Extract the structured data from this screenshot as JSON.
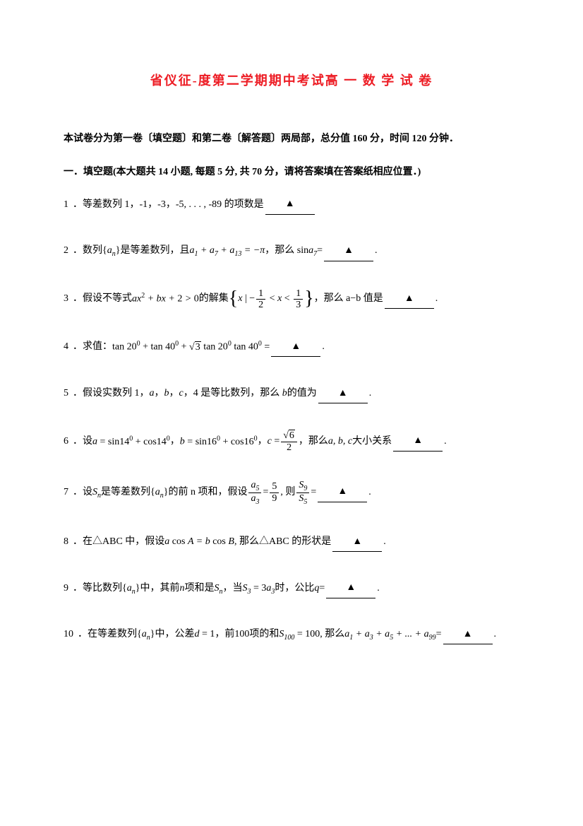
{
  "title": "省仪征-度第二学期期中考试高 一 数 学 试 卷",
  "intro": "本试卷分为第一卷〔填空题〕和第二卷〔解答题〕两局部，总分值 160 分，时间 120 分钟．",
  "section1_heading": "一．填空题(本大题共 14 小题, 每题 5 分, 共 70 分，请将答案填在答案纸相应位置．)",
  "blank_symbol": "▲",
  "questions": {
    "q1": {
      "num": "1",
      "text_a": "．等差数列 1，-1，-3，-5, . . . , -89 的项数是"
    },
    "q2": {
      "num": "2",
      "text_a": "．数列",
      "seq": "{aₙ}",
      "text_b": "是等差数列，且",
      "expr1_a": "a",
      "expr1_sub1": "1",
      "expr1_plus": " + ",
      "expr1_sub2": "7",
      "expr1_sub3": "13",
      "expr1_eq": " = −π",
      "text_c": " ，那么 sin ",
      "expr2_sub": "7",
      "text_d": " ="
    },
    "q3": {
      "num": "3",
      "text_a": "．假设不等式",
      "expr": "ax² + bx + 2 > 0",
      "text_b": " 的解集",
      "set_x": "x",
      "set_bar": " | ",
      "set_lt1": " < ",
      "set_lt2": " < ",
      "frac1_num": "1",
      "frac1_den": "2",
      "frac2_num": "1",
      "frac2_den": "3",
      "text_c": "，那么 a−b 值是"
    },
    "q4": {
      "num": "4",
      "text_a": "．求值：",
      "tan": "tan",
      "deg20": "20⁰",
      "deg40": "40⁰",
      "plus": " + ",
      "sqrt3": "3",
      "eq": " ="
    },
    "q5": {
      "num": "5",
      "text_a": "．假设实数列 1，",
      "a": "a",
      "b": "b",
      "c": "c",
      "text_b": "，4 是等比数列，那么",
      "text_c": " 的值为"
    },
    "q6": {
      "num": "6",
      "text_a": "．设",
      "a_eq": "a = sin14⁰ + cos14⁰",
      "b_eq": "b = sin16⁰ + cos16⁰",
      "c_eq_a": "c = ",
      "sqrt6": "6",
      "frac_den": "2",
      "text_b": "，那么",
      "abc": "a, b, c",
      "text_c": " 大小关系"
    },
    "q7": {
      "num": "7",
      "text_a": "．设",
      "Sn": "Sₙ",
      "text_b": " 是等差数列",
      "seq": "{aₙ}",
      "text_c": "的前 n 项和，假设",
      "frac1_num": "a₅",
      "frac1_den": "a₃",
      "eq1": " = ",
      "frac2_num": "5",
      "frac2_den": "9",
      "text_d": ", 则",
      "frac3_num": "S₉",
      "frac3_den": "S₅",
      "eq2": " ="
    },
    "q8": {
      "num": "8",
      "text_a": "．在△ABC 中，假设",
      "expr": "a cos A = b cos B",
      "text_b": ", 那么△ABC 的形状是"
    },
    "q9": {
      "num": "9",
      "text_a": "．等比数列",
      "seq": "{aₙ}",
      "text_b": " 中，其前",
      "n": "n",
      "text_c": " 项和是",
      "Sn": "Sₙ",
      "text_d": " ，当",
      "expr": "S₃ = 3a₃",
      "text_e": " 时，公比",
      "q": "q",
      "eq": " ="
    },
    "q10": {
      "num": "10",
      "text_a": "．在等差数列",
      "seq": "{aₙ}",
      "text_b": "中，公差",
      "d_eq": "d = 1",
      "text_c": "，前",
      "hundred": "100",
      "text_d": " 项的和",
      "S100": "S₁₀₀ = 100",
      "text_e": " , 那么",
      "sum_expr": "a₁ + a₃ + a₅ + ... + a₉₉",
      "eq": " ="
    }
  },
  "colors": {
    "title_color": "#ed1c24",
    "text_color": "#000000",
    "background": "#ffffff"
  },
  "fonts": {
    "body_family": "SimSun",
    "math_family": "Times New Roman",
    "title_size": 18,
    "body_size": 14
  }
}
